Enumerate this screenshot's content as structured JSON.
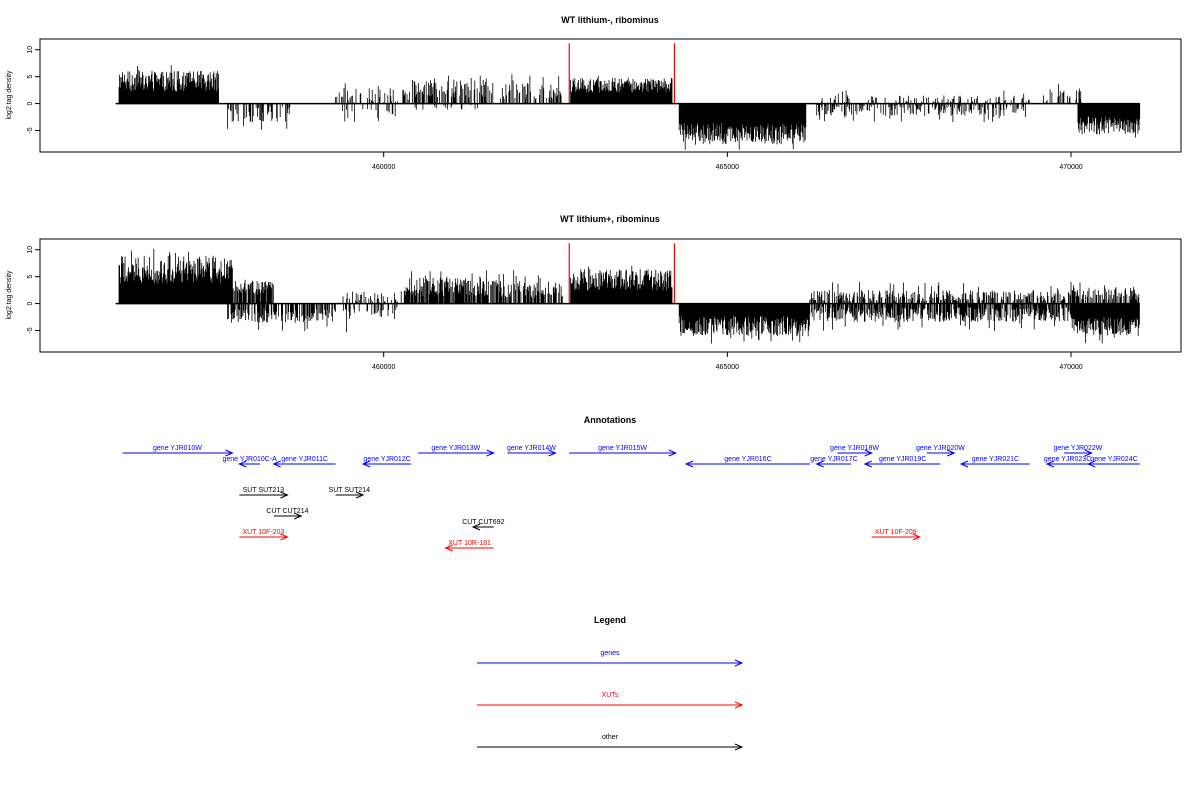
{
  "chart_data": [
    {
      "type": "bar",
      "title": "WT lithium-, ribominus",
      "ylabel": "log2 tag density",
      "xlabel": "",
      "xlim": [
        455000,
        471600
      ],
      "ylim": [
        -9,
        12
      ],
      "xticks": [
        {
          "v": 460000,
          "label": "460000"
        },
        {
          "v": 465000,
          "label": "465000"
        },
        {
          "v": 470000,
          "label": "470000"
        }
      ],
      "yticks": [
        {
          "v": -5,
          "label": "-5"
        },
        {
          "v": 0,
          "label": "0"
        },
        {
          "v": 5,
          "label": "5"
        },
        {
          "v": 10,
          "label": "10"
        }
      ],
      "marker_lines": [
        462700,
        464230
      ],
      "marker_color": "#ff0000",
      "segments": [
        {
          "x0": 456150,
          "x1": 457600,
          "sign": 1,
          "mean": 3.6,
          "amp": 1.9,
          "density": 1.0,
          "peak": 8.1
        },
        {
          "x0": 457700,
          "x1": 458650,
          "sign": -1,
          "mean": 1.6,
          "amp": 1.5,
          "density": 0.45,
          "peak": 5.2
        },
        {
          "x0": 459300,
          "x1": 460400,
          "sign": 1,
          "mean": 1.0,
          "amp": 1.5,
          "density": 0.3,
          "peak": 4.2
        },
        {
          "x0": 459400,
          "x1": 460200,
          "sign": -1,
          "mean": 1.8,
          "amp": 1.2,
          "density": 0.2,
          "peak": 4.5
        },
        {
          "x0": 460400,
          "x1": 461600,
          "sign": 1,
          "mean": 2.3,
          "amp": 1.7,
          "density": 0.55,
          "peak": 6.0
        },
        {
          "x0": 460300,
          "x1": 461400,
          "sign": -1,
          "mean": 0.5,
          "amp": 0.5,
          "density": 0.15,
          "peak": 1.5
        },
        {
          "x0": 461700,
          "x1": 462600,
          "sign": 1,
          "mean": 1.8,
          "amp": 1.6,
          "density": 0.5,
          "peak": 5.5
        },
        {
          "x0": 462720,
          "x1": 464200,
          "sign": 1,
          "mean": 3.0,
          "amp": 1.4,
          "density": 1.0,
          "peak": 5.5
        },
        {
          "x0": 464300,
          "x1": 466150,
          "sign": -1,
          "mean": 5.0,
          "amp": 2.0,
          "density": 1.0,
          "peak": 8.6
        },
        {
          "x0": 466300,
          "x1": 469400,
          "sign": -1,
          "mean": 0.9,
          "amp": 1.1,
          "density": 0.45,
          "peak": 3.5
        },
        {
          "x0": 466300,
          "x1": 469400,
          "sign": 1,
          "mean": 0.5,
          "amp": 0.8,
          "density": 0.25,
          "peak": 2.5
        },
        {
          "x0": 469600,
          "x1": 470200,
          "sign": 1,
          "mean": 1.0,
          "amp": 1.5,
          "density": 0.3,
          "peak": 4.0
        },
        {
          "x0": 470100,
          "x1": 471000,
          "sign": -1,
          "mean": 3.6,
          "amp": 1.7,
          "density": 1.0,
          "peak": 6.8
        }
      ],
      "spikes": [
        {
          "x": 462700,
          "v": 11.2
        },
        {
          "x": 464230,
          "v": 11.2
        }
      ]
    },
    {
      "type": "bar",
      "title": "WT lithium+, ribominus",
      "ylabel": "log2 tag density",
      "xlabel": "",
      "xlim": [
        455000,
        471600
      ],
      "ylim": [
        -9,
        12
      ],
      "xticks": [
        {
          "v": 460000,
          "label": "460000"
        },
        {
          "v": 465000,
          "label": "465000"
        },
        {
          "v": 470000,
          "label": "470000"
        }
      ],
      "yticks": [
        {
          "v": -5,
          "label": "-5"
        },
        {
          "v": 0,
          "label": "0"
        },
        {
          "v": 5,
          "label": "5"
        },
        {
          "v": 10,
          "label": "10"
        }
      ],
      "marker_lines": [
        462700,
        464230
      ],
      "marker_color": "#ff0000",
      "segments": [
        {
          "x0": 456150,
          "x1": 457800,
          "sign": 1,
          "mean": 5.5,
          "amp": 2.6,
          "density": 1.0,
          "peak": 10.9
        },
        {
          "x0": 457800,
          "x1": 458400,
          "sign": 1,
          "mean": 2.5,
          "amp": 1.3,
          "density": 0.9,
          "peak": 5.0
        },
        {
          "x0": 457700,
          "x1": 459300,
          "sign": -1,
          "mean": 1.8,
          "amp": 1.4,
          "density": 0.6,
          "peak": 6.0
        },
        {
          "x0": 459400,
          "x1": 460300,
          "sign": 1,
          "mean": 1.0,
          "amp": 1.0,
          "density": 0.35,
          "peak": 3.2
        },
        {
          "x0": 459400,
          "x1": 460200,
          "sign": -1,
          "mean": 1.5,
          "amp": 1.2,
          "density": 0.3,
          "peak": 5.5
        },
        {
          "x0": 460300,
          "x1": 461700,
          "sign": 1,
          "mean": 2.6,
          "amp": 1.8,
          "density": 0.8,
          "peak": 6.6
        },
        {
          "x0": 461700,
          "x1": 462600,
          "sign": 1,
          "mean": 2.2,
          "amp": 1.6,
          "density": 0.6,
          "peak": 6.5
        },
        {
          "x0": 462720,
          "x1": 464200,
          "sign": 1,
          "mean": 3.8,
          "amp": 2.0,
          "density": 1.0,
          "peak": 7.5
        },
        {
          "x0": 464300,
          "x1": 466200,
          "sign": -1,
          "mean": 3.6,
          "amp": 1.9,
          "density": 1.0,
          "peak": 7.5
        },
        {
          "x0": 466200,
          "x1": 470000,
          "sign": -1,
          "mean": 1.6,
          "amp": 1.4,
          "density": 0.7,
          "peak": 5.2
        },
        {
          "x0": 466200,
          "x1": 470000,
          "sign": 1,
          "mean": 1.1,
          "amp": 1.1,
          "density": 0.55,
          "peak": 4.0
        },
        {
          "x0": 470000,
          "x1": 471000,
          "sign": -1,
          "mean": 3.6,
          "amp": 1.8,
          "density": 1.0,
          "peak": 7.5
        },
        {
          "x0": 470000,
          "x1": 471000,
          "sign": 1,
          "mean": 1.5,
          "amp": 1.2,
          "density": 0.6,
          "peak": 4.5
        }
      ],
      "spikes": [
        {
          "x": 462700,
          "v": 11.2
        },
        {
          "x": 464230,
          "v": 11.2
        }
      ]
    }
  ],
  "annotations": {
    "title": "Annotations",
    "features": [
      {
        "label": "gene YJR010W",
        "x0": 456200,
        "x1": 457800,
        "strand": "+",
        "row": 0,
        "color": "#0000ff"
      },
      {
        "label": "gene YJR010C-A",
        "x0": 457900,
        "x1": 458200,
        "strand": "-",
        "row": 1,
        "color": "#0000ff"
      },
      {
        "label": "gene YJR011C",
        "x0": 458400,
        "x1": 459300,
        "strand": "-",
        "row": 1,
        "color": "#0000ff"
      },
      {
        "label": "gene YJR012C",
        "x0": 459700,
        "x1": 460400,
        "strand": "-",
        "row": 1,
        "color": "#0000ff"
      },
      {
        "label": "gene YJR013W",
        "x0": 460500,
        "x1": 461600,
        "strand": "+",
        "row": 0,
        "color": "#0000ff"
      },
      {
        "label": "gene YJR014W",
        "x0": 461800,
        "x1": 462500,
        "strand": "+",
        "row": 0,
        "color": "#0000ff"
      },
      {
        "label": "gene YJR015W",
        "x0": 462700,
        "x1": 464250,
        "strand": "+",
        "row": 0,
        "color": "#0000ff"
      },
      {
        "label": "gene YJR016C",
        "x0": 464400,
        "x1": 466200,
        "strand": "-",
        "row": 1,
        "color": "#0000ff"
      },
      {
        "label": "gene YJR017C",
        "x0": 466300,
        "x1": 466800,
        "strand": "-",
        "row": 1,
        "color": "#0000ff"
      },
      {
        "label": "gene YJR018W",
        "x0": 466600,
        "x1": 467100,
        "strand": "+",
        "row": 0,
        "color": "#0000ff"
      },
      {
        "label": "gene YJR019C",
        "x0": 467000,
        "x1": 468100,
        "strand": "-",
        "row": 1,
        "color": "#0000ff"
      },
      {
        "label": "gene YJR020W",
        "x0": 467900,
        "x1": 468300,
        "strand": "+",
        "row": 0,
        "color": "#0000ff"
      },
      {
        "label": "gene YJR021C",
        "x0": 468400,
        "x1": 469400,
        "strand": "-",
        "row": 1,
        "color": "#0000ff"
      },
      {
        "label": "gene YJR022W",
        "x0": 469900,
        "x1": 470300,
        "strand": "+",
        "row": 0,
        "color": "#0000ff"
      },
      {
        "label": "gene YJR023C",
        "x0": 469650,
        "x1": 470250,
        "strand": "-",
        "row": 1,
        "color": "#0000ff"
      },
      {
        "label": "gene YJR024C",
        "x0": 470250,
        "x1": 471000,
        "strand": "-",
        "row": 1,
        "color": "#0000ff"
      },
      {
        "label": "SUT SUT213",
        "x0": 457900,
        "x1": 458600,
        "strand": "+",
        "row": 3,
        "color": "#000000"
      },
      {
        "label": "SUT SUT214",
        "x0": 459300,
        "x1": 459700,
        "strand": "+",
        "row": 3,
        "color": "#000000"
      },
      {
        "label": "CUT CUT214",
        "x0": 458400,
        "x1": 458800,
        "strand": "+",
        "row": 4,
        "color": "#000000"
      },
      {
        "label": "CUT CUT692",
        "x0": 461300,
        "x1": 461600,
        "strand": "-",
        "row": 5,
        "color": "#000000"
      },
      {
        "label": "XUT 10F-203",
        "x0": 457900,
        "x1": 458600,
        "strand": "+",
        "row": 6,
        "color": "#ff0000"
      },
      {
        "label": "XUT 10R-181",
        "x0": 460900,
        "x1": 461600,
        "strand": "-",
        "row": 7,
        "color": "#ff0000"
      },
      {
        "label": "XUT 10F-209",
        "x0": 467100,
        "x1": 467800,
        "strand": "+",
        "row": 6,
        "color": "#ff0000"
      }
    ]
  },
  "legend": {
    "title": "Legend",
    "items": [
      {
        "label": "genes",
        "color": "#0000ff"
      },
      {
        "label": "XUTs",
        "color": "#ff0000"
      },
      {
        "label": "other",
        "color": "#000000"
      }
    ]
  }
}
